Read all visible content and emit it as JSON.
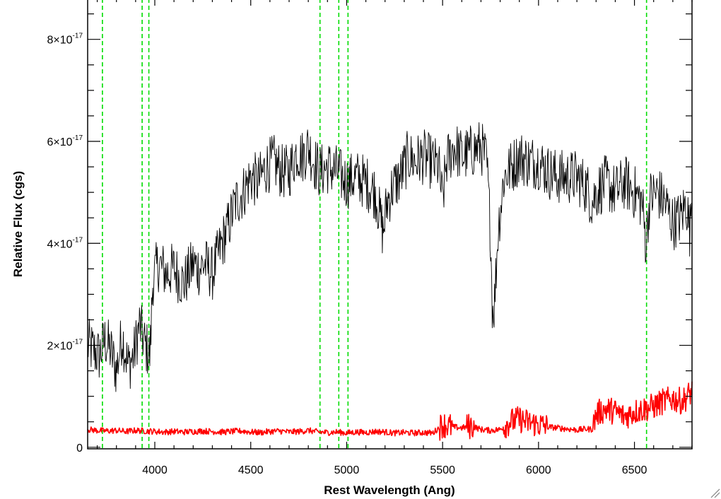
{
  "chart_data": {
    "type": "line",
    "xlabel": "Rest Wavelength (Ang)",
    "ylabel": "Relative Flux (cgs)",
    "xlim": [
      3650,
      6800
    ],
    "ylim": [
      -0.03,
      8.8
    ],
    "y_unit_exponent": "-17",
    "x_ticks": [
      {
        "value": 4000,
        "label": "4000"
      },
      {
        "value": 4500,
        "label": "4500"
      },
      {
        "value": 5000,
        "label": "5000"
      },
      {
        "value": 5500,
        "label": "5500"
      },
      {
        "value": 6000,
        "label": "6000"
      },
      {
        "value": 6500,
        "label": "6500"
      }
    ],
    "y_ticks": [
      {
        "value": 0,
        "mantissa": "0",
        "times": "",
        "base": "",
        "exp": ""
      },
      {
        "value": 2,
        "mantissa": "2",
        "times": "×",
        "base": "10",
        "exp": "-17"
      },
      {
        "value": 4,
        "mantissa": "4",
        "times": "×",
        "base": "10",
        "exp": "-17"
      },
      {
        "value": 6,
        "mantissa": "6",
        "times": "×",
        "base": "10",
        "exp": "-17"
      },
      {
        "value": 8,
        "mantissa": "8",
        "times": "×",
        "base": "10",
        "exp": "-17"
      }
    ],
    "reference_lines": [
      3727,
      3934,
      3969,
      4861,
      4959,
      5007,
      6563
    ],
    "series": [
      {
        "color": "#000000",
        "x": [
          3650,
          3680,
          3710,
          3740,
          3770,
          3800,
          3830,
          3860,
          3890,
          3920,
          3950,
          3975,
          3990,
          4020,
          4060,
          4100,
          4150,
          4200,
          4230,
          4260,
          4300,
          4340,
          4380,
          4420,
          4460,
          4500,
          4540,
          4580,
          4620,
          4660,
          4700,
          4740,
          4770,
          4800,
          4830,
          4860,
          4900,
          4950,
          5000,
          5050,
          5100,
          5150,
          5190,
          5210,
          5240,
          5280,
          5320,
          5360,
          5400,
          5440,
          5480,
          5500,
          5520,
          5560,
          5600,
          5650,
          5700,
          5730,
          5750,
          5760,
          5770,
          5790,
          5820,
          5860,
          5900,
          5950,
          6000,
          6050,
          6100,
          6150,
          6200,
          6250,
          6280,
          6300,
          6350,
          6400,
          6450,
          6500,
          6540,
          6560,
          6580,
          6620,
          6660,
          6700,
          6740,
          6770,
          6790,
          6800
        ],
        "values": [
          2.0,
          1.9,
          1.8,
          2.1,
          1.9,
          1.5,
          2.2,
          1.6,
          1.8,
          2.4,
          2.0,
          1.8,
          3.3,
          3.6,
          3.4,
          3.5,
          3.2,
          3.6,
          3.5,
          3.6,
          3.4,
          3.9,
          4.3,
          4.8,
          5.0,
          5.3,
          5.2,
          5.5,
          5.6,
          5.4,
          5.4,
          5.8,
          5.7,
          5.9,
          5.6,
          5.4,
          5.5,
          5.4,
          5.2,
          5.3,
          5.2,
          5.0,
          4.2,
          4.8,
          5.1,
          5.3,
          5.7,
          5.6,
          5.7,
          5.6,
          5.5,
          4.8,
          5.6,
          5.9,
          5.7,
          5.8,
          5.9,
          5.6,
          4.2,
          2.7,
          2.8,
          4.3,
          5.3,
          5.5,
          5.7,
          5.6,
          5.6,
          5.4,
          5.3,
          5.3,
          5.3,
          5.1,
          4.8,
          5.0,
          5.2,
          5.0,
          5.2,
          5.0,
          4.8,
          4.0,
          4.9,
          5.0,
          4.8,
          4.4,
          4.5,
          4.8,
          4.2,
          5.2
        ]
      },
      {
        "color": "#ff0000",
        "x": [
          3650,
          3700,
          3750,
          3800,
          3850,
          3900,
          3950,
          4000,
          4050,
          4100,
          4150,
          4200,
          4250,
          4300,
          4350,
          4400,
          4450,
          4500,
          4550,
          4600,
          4650,
          4700,
          4750,
          4800,
          4850,
          4900,
          4950,
          5000,
          5050,
          5100,
          5150,
          5200,
          5250,
          5300,
          5350,
          5400,
          5450,
          5500,
          5550,
          5600,
          5650,
          5700,
          5750,
          5800,
          5850,
          5900,
          5950,
          6000,
          6050,
          6100,
          6150,
          6200,
          6250,
          6280,
          6300,
          6350,
          6400,
          6450,
          6500,
          6550,
          6600,
          6650,
          6700,
          6750,
          6800
        ],
        "values": [
          0.35,
          0.33,
          0.32,
          0.33,
          0.31,
          0.33,
          0.32,
          0.31,
          0.3,
          0.31,
          0.3,
          0.31,
          0.32,
          0.31,
          0.3,
          0.31,
          0.32,
          0.3,
          0.29,
          0.31,
          0.32,
          0.3,
          0.31,
          0.33,
          0.3,
          0.29,
          0.3,
          0.28,
          0.3,
          0.29,
          0.31,
          0.3,
          0.28,
          0.29,
          0.28,
          0.29,
          0.28,
          0.45,
          0.4,
          0.38,
          0.42,
          0.35,
          0.33,
          0.35,
          0.5,
          0.55,
          0.48,
          0.45,
          0.4,
          0.38,
          0.36,
          0.34,
          0.36,
          0.35,
          0.65,
          0.75,
          0.7,
          0.6,
          0.7,
          0.75,
          0.8,
          0.9,
          0.95,
          0.9,
          1.1
        ]
      }
    ]
  }
}
